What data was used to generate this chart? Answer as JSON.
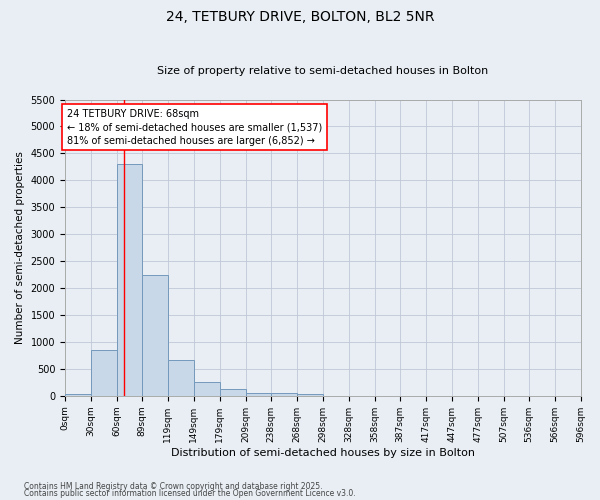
{
  "title": "24, TETBURY DRIVE, BOLTON, BL2 5NR",
  "subtitle": "Size of property relative to semi-detached houses in Bolton",
  "xlabel": "Distribution of semi-detached houses by size in Bolton",
  "ylabel": "Number of semi-detached properties",
  "bar_values": [
    30,
    860,
    4300,
    2250,
    670,
    250,
    120,
    60,
    60,
    40,
    0,
    0,
    0,
    0,
    0,
    0,
    0,
    0,
    0,
    0
  ],
  "bin_edges": [
    0,
    30,
    60,
    89,
    119,
    149,
    179,
    209,
    238,
    268,
    298,
    328,
    358,
    387,
    417,
    447,
    477,
    507,
    536,
    566,
    596
  ],
  "tick_labels": [
    "0sqm",
    "30sqm",
    "60sqm",
    "89sqm",
    "119sqm",
    "149sqm",
    "179sqm",
    "209sqm",
    "238sqm",
    "268sqm",
    "298sqm",
    "328sqm",
    "358sqm",
    "387sqm",
    "417sqm",
    "447sqm",
    "477sqm",
    "507sqm",
    "536sqm",
    "566sqm",
    "596sqm"
  ],
  "bar_color": "#c8d8e8",
  "bar_edgecolor": "#7399bb",
  "grid_color": "#c0c8d8",
  "bg_color": "#e8eef4",
  "red_line_x": 68,
  "annotation_text": "24 TETBURY DRIVE: 68sqm\n← 18% of semi-detached houses are smaller (1,537)\n81% of semi-detached houses are larger (6,852) →",
  "ylim": [
    0,
    5500
  ],
  "yticks": [
    0,
    500,
    1000,
    1500,
    2000,
    2500,
    3000,
    3500,
    4000,
    4500,
    5000,
    5500
  ],
  "footnote1": "Contains HM Land Registry data © Crown copyright and database right 2025.",
  "footnote2": "Contains public sector information licensed under the Open Government Licence v3.0.",
  "title_fontsize": 10,
  "subtitle_fontsize": 8,
  "xlabel_fontsize": 8,
  "ylabel_fontsize": 7.5,
  "annot_fontsize": 7,
  "tick_fontsize": 6.5,
  "ytick_fontsize": 7
}
